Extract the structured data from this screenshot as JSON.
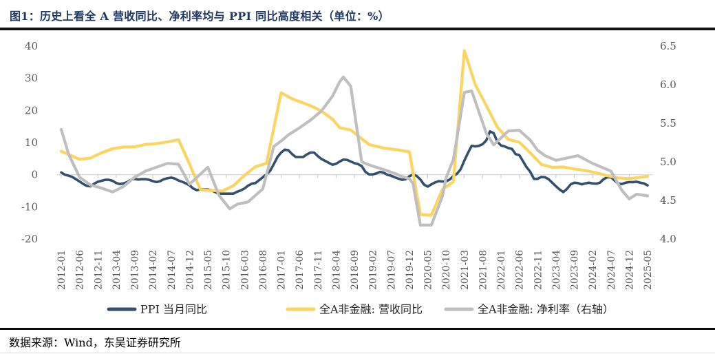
{
  "title": "图1：历史上看全 A 营收同比、净利率均与 PPI 同比高度相关（单位：%）",
  "source": "数据来源：Wind，东吴证券研究所",
  "colors": {
    "title_navy": "#1F3864",
    "rule_black": "#121212",
    "ppi_line": "#34506E",
    "revenue_line": "#FBD55F",
    "netmargin_line": "#BFBFBF",
    "axis_text": "#595959",
    "gridline": "#DADADA"
  },
  "chart_data": {
    "type": "line",
    "title": "历史上看全A营收同比、净利率均与PPI同比高度相关",
    "unit": "%",
    "x_tick_labels": [
      "2012-01",
      "2012-06",
      "2012-11",
      "2013-04",
      "2013-09",
      "2014-02",
      "2014-07",
      "2014-12",
      "2015-05",
      "2015-10",
      "2016-03",
      "2016-08",
      "2017-01",
      "2017-06",
      "2017-11",
      "2018-04",
      "2018-09",
      "2019-02",
      "2019-07",
      "2019-12",
      "2020-05",
      "2020-10",
      "2021-03",
      "2021-08",
      "2022-01",
      "2022-06",
      "2022-11",
      "2023-04",
      "2023-09",
      "2024-02",
      "2024-07",
      "2024-12",
      "2025-05"
    ],
    "x_month_span": 160,
    "x_tick_month_step": 5,
    "left_axis": {
      "range": [
        -20,
        40
      ],
      "ticks": [
        40,
        30,
        20,
        10,
        0,
        -10,
        -20
      ]
    },
    "right_axis": {
      "range": [
        4.0,
        6.5
      ],
      "ticks": [
        6.5,
        6.0,
        5.5,
        5.0,
        4.5,
        4.0
      ]
    },
    "grid": "zero-line-only",
    "legend_position": "bottom",
    "series": [
      {
        "key": "ppi",
        "name": "PPI 当月同比",
        "axis": "left",
        "color": "#34506E",
        "width": 3.6,
        "monthly_values": [
          0.7,
          0.0,
          -0.3,
          -0.7,
          -1.4,
          -2.1,
          -2.9,
          -3.5,
          -3.6,
          -2.8,
          -2.2,
          -1.9,
          -1.6,
          -1.6,
          -1.9,
          -2.6,
          -2.9,
          -2.7,
          -2.3,
          -1.6,
          -1.3,
          -1.5,
          -1.4,
          -1.4,
          -1.6,
          -2.0,
          -2.3,
          -2.0,
          -1.4,
          -1.1,
          -0.9,
          -1.2,
          -1.8,
          -2.2,
          -2.7,
          -3.3,
          -4.3,
          -4.8,
          -4.6,
          -4.6,
          -4.6,
          -4.8,
          -5.4,
          -5.9,
          -5.9,
          -5.9,
          -5.9,
          -5.9,
          -5.3,
          -4.9,
          -4.3,
          -3.4,
          -2.8,
          -2.6,
          -1.7,
          -0.8,
          0.1,
          1.2,
          3.3,
          5.5,
          6.9,
          7.8,
          7.6,
          6.4,
          5.5,
          5.5,
          5.5,
          6.3,
          6.9,
          6.9,
          5.8,
          4.9,
          4.3,
          3.7,
          3.1,
          3.4,
          4.1,
          4.7,
          4.6,
          4.1,
          3.6,
          3.3,
          2.7,
          0.9,
          0.1,
          0.1,
          0.4,
          0.9,
          0.6,
          0.0,
          -0.3,
          -0.8,
          -1.2,
          -1.6,
          -1.4,
          -0.5,
          0.1,
          -0.4,
          -1.5,
          -3.1,
          -3.7,
          -3.0,
          -2.4,
          -2.0,
          -2.1,
          -2.1,
          -1.5,
          -0.4,
          0.3,
          1.7,
          4.4,
          6.8,
          9.0,
          8.8,
          9.0,
          9.5,
          10.7,
          13.5,
          12.9,
          10.3,
          9.1,
          8.8,
          8.3,
          8.0,
          6.4,
          6.1,
          4.2,
          2.3,
          0.9,
          -1.3,
          -1.3,
          -0.7,
          -0.8,
          -1.4,
          -2.5,
          -3.6,
          -4.6,
          -5.4,
          -4.4,
          -3.0,
          -2.5,
          -2.6,
          -3.0,
          -2.7,
          -2.5,
          -2.7,
          -2.8,
          -2.5,
          -1.4,
          -0.8,
          -0.8,
          -1.8,
          -2.8,
          -2.9,
          -2.5,
          -2.3,
          -2.3,
          -2.2,
          -2.5,
          -2.7,
          -3.3
        ]
      },
      {
        "key": "revenue_yoy",
        "name": "全A非金融: 营收同比",
        "axis": "left",
        "color": "#FBD55F",
        "width": 4.2,
        "points": [
          [
            0,
            7.3
          ],
          [
            2,
            6.3
          ],
          [
            5,
            4.8
          ],
          [
            8,
            5.2
          ],
          [
            11,
            6.8
          ],
          [
            14,
            8.1
          ],
          [
            17,
            8.6
          ],
          [
            20,
            8.7
          ],
          [
            23,
            9.4
          ],
          [
            26,
            9.7
          ],
          [
            29,
            10.2
          ],
          [
            32,
            10.9
          ],
          [
            35,
            3.3
          ],
          [
            38,
            -4.7
          ],
          [
            41,
            -4.9
          ],
          [
            44,
            -5.1
          ],
          [
            47,
            -3.4
          ],
          [
            50,
            -0.2
          ],
          [
            53,
            2.5
          ],
          [
            56,
            3.5
          ],
          [
            60,
            25.5
          ],
          [
            63,
            23.6
          ],
          [
            68,
            21.5
          ],
          [
            71,
            19.8
          ],
          [
            74,
            17.3
          ],
          [
            76,
            14.6
          ],
          [
            79,
            13.9
          ],
          [
            82,
            11.2
          ],
          [
            84,
            9.4
          ],
          [
            88,
            8.3
          ],
          [
            92,
            7.7
          ],
          [
            95,
            7.1
          ],
          [
            98,
            -12.4
          ],
          [
            101,
            -12.6
          ],
          [
            104,
            -4.6
          ],
          [
            107,
            -2.2
          ],
          [
            110,
            38.6
          ],
          [
            113,
            28.0
          ],
          [
            116,
            21.5
          ],
          [
            119,
            14.8
          ],
          [
            122,
            11.0
          ],
          [
            125,
            10.1
          ],
          [
            128,
            6.8
          ],
          [
            131,
            3.2
          ],
          [
            134,
            2.3
          ],
          [
            137,
            2.4
          ],
          [
            140,
            1.8
          ],
          [
            143,
            1.3
          ],
          [
            146,
            0.6
          ],
          [
            149,
            -0.3
          ],
          [
            152,
            -1.0
          ],
          [
            155,
            -1.2
          ],
          [
            158,
            -0.8
          ],
          [
            160,
            -0.5
          ]
        ]
      },
      {
        "key": "net_margin",
        "name": "全A非金融: 净利率（右轴）",
        "axis": "right",
        "color": "#BFBFBF",
        "width": 4.2,
        "points": [
          [
            0,
            5.42
          ],
          [
            2,
            5.1
          ],
          [
            5,
            4.8
          ],
          [
            8,
            4.7
          ],
          [
            11,
            4.66
          ],
          [
            14,
            4.61
          ],
          [
            17,
            4.68
          ],
          [
            20,
            4.8
          ],
          [
            23,
            4.88
          ],
          [
            26,
            4.93
          ],
          [
            29,
            4.98
          ],
          [
            32,
            4.97
          ],
          [
            35,
            4.71
          ],
          [
            40,
            4.93
          ],
          [
            43,
            4.57
          ],
          [
            46,
            4.39
          ],
          [
            48,
            4.45
          ],
          [
            51,
            4.48
          ],
          [
            55,
            4.65
          ],
          [
            58,
            5.2
          ],
          [
            60,
            5.27
          ],
          [
            62,
            5.35
          ],
          [
            65,
            5.44
          ],
          [
            68,
            5.54
          ],
          [
            71,
            5.66
          ],
          [
            74,
            5.85
          ],
          [
            76,
            6.04
          ],
          [
            77,
            6.1
          ],
          [
            79,
            5.98
          ],
          [
            82,
            5.0
          ],
          [
            84,
            4.96
          ],
          [
            88,
            4.9
          ],
          [
            91,
            4.85
          ],
          [
            93,
            4.81
          ],
          [
            95,
            4.78
          ],
          [
            96,
            4.72
          ],
          [
            98,
            4.18
          ],
          [
            101,
            4.18
          ],
          [
            104,
            4.55
          ],
          [
            105,
            4.79
          ],
          [
            107,
            5.03
          ],
          [
            110,
            5.9
          ],
          [
            112,
            5.92
          ],
          [
            116,
            5.37
          ],
          [
            118,
            5.22
          ],
          [
            122,
            5.4
          ],
          [
            125,
            5.41
          ],
          [
            128,
            5.28
          ],
          [
            130,
            5.15
          ],
          [
            132,
            5.08
          ],
          [
            135,
            5.02
          ],
          [
            138,
            5.05
          ],
          [
            141,
            5.08
          ],
          [
            145,
            4.98
          ],
          [
            148,
            4.92
          ],
          [
            150,
            4.88
          ],
          [
            153,
            4.63
          ],
          [
            155,
            4.52
          ],
          [
            157,
            4.58
          ],
          [
            160,
            4.56
          ]
        ]
      }
    ]
  }
}
